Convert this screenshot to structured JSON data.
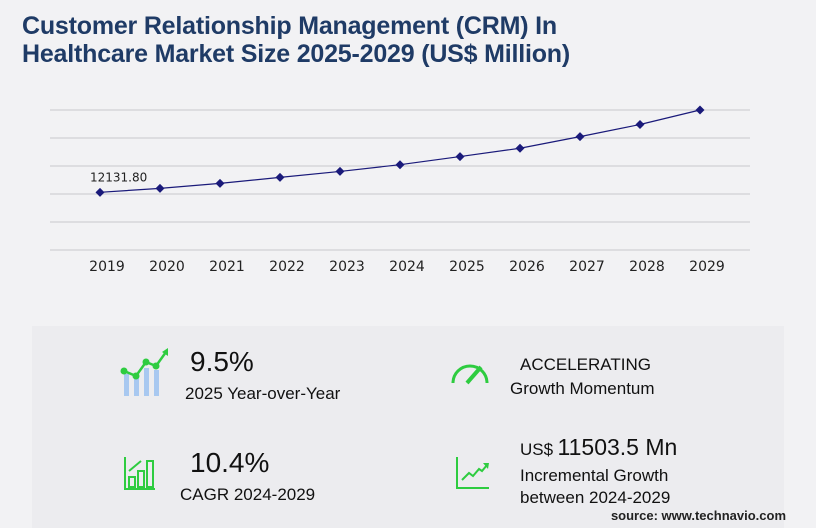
{
  "title": "Customer Relationship Management (CRM) In Healthcare Market Size 2025-2029 (US$ Million)",
  "chart_data": {
    "type": "line",
    "title": "Customer Relationship Management (CRM) In Healthcare Market Size 2025-2029 (US$ Million)",
    "categories": [
      "2019",
      "2020",
      "2021",
      "2022",
      "2023",
      "2024",
      "2025",
      "2026",
      "2027",
      "2028",
      "2029"
    ],
    "values": [
      12131.8,
      12970,
      14016,
      15270,
      16527,
      17946,
      19651,
      21400,
      23850,
      26400,
      29450
    ],
    "data_labels": [
      "12131.80"
    ],
    "ylim": [
      0,
      29450
    ],
    "grid": true,
    "line_color": "#1a1a7a"
  },
  "stats": {
    "yoy_value": "9.5%",
    "yoy_label": "2025 Year-over-Year",
    "momentum_value": "ACCELERATING",
    "momentum_label": "Growth Momentum",
    "cagr_value": "10.4%",
    "cagr_label": "CAGR 2024-2029",
    "incr_prefix": "US$",
    "incr_value": "11503.5 Mn",
    "incr_label1": "Incremental Growth",
    "incr_label2": "between 2024-2029"
  },
  "source": "source: www.technavio.com",
  "accent_color": "#2ecc40"
}
